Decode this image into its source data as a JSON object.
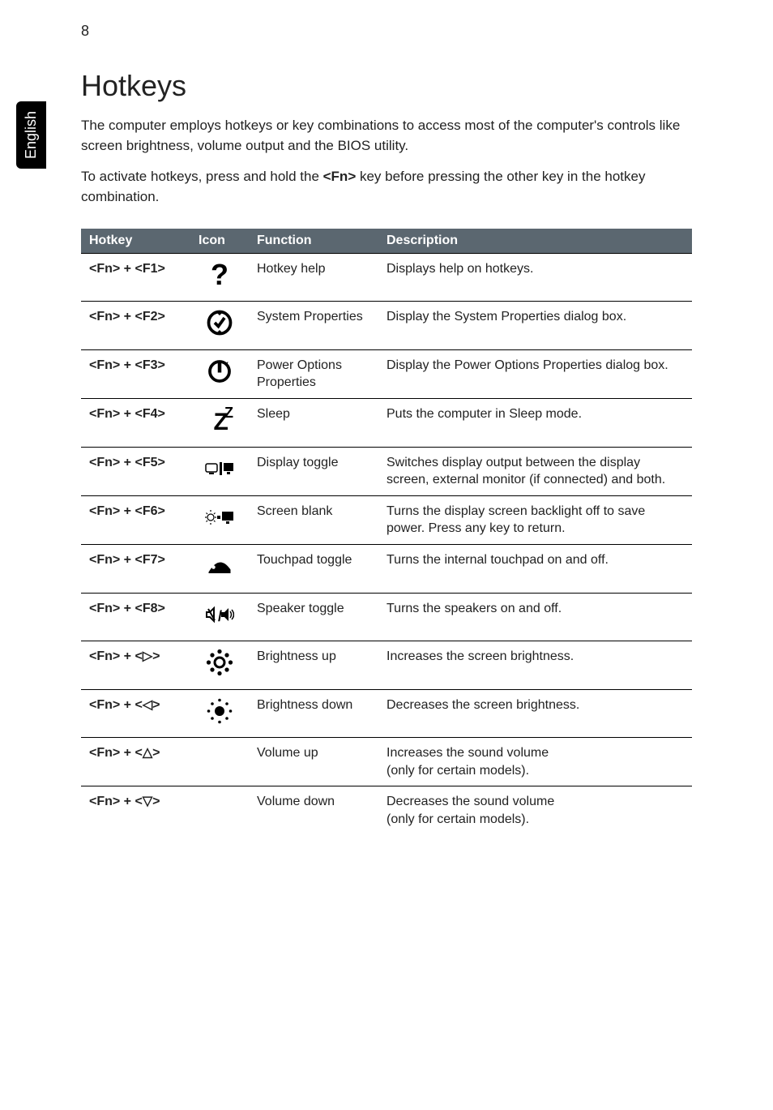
{
  "page_number": "8",
  "side_tab_label": "English",
  "heading": "Hotkeys",
  "intro_para_1": "The computer employs hotkeys or key combinations to access most of the computer's controls like screen brightness, volume output and the BIOS utility.",
  "intro_para_2_pre": "To activate hotkeys, press and hold the ",
  "intro_para_2_key": "<Fn>",
  "intro_para_2_post": " key before pressing the other key in the hotkey combination.",
  "table": {
    "header_bg": "#5b6770",
    "header_fg": "#ffffff",
    "columns": [
      "Hotkey",
      "Icon",
      "Function",
      "Description"
    ],
    "rows": [
      {
        "hotkey": "<Fn> + <F1>",
        "icon": "question-icon",
        "function": "Hotkey help",
        "description": "Displays help on hotkeys."
      },
      {
        "hotkey": "<Fn> + <F2>",
        "icon": "system-properties-icon",
        "function": "System Properties",
        "description": "Display the System Properties dialog box."
      },
      {
        "hotkey": "<Fn> + <F3>",
        "icon": "power-options-icon",
        "function": "Power Options Properties",
        "description": "Display the Power Options Properties dialog box."
      },
      {
        "hotkey": "<Fn> + <F4>",
        "icon": "sleep-icon",
        "function": "Sleep",
        "description": "Puts the computer in Sleep mode."
      },
      {
        "hotkey": "<Fn> + <F5>",
        "icon": "display-toggle-icon",
        "function": "Display toggle",
        "description": "Switches display output between the display screen, external monitor (if connected) and both."
      },
      {
        "hotkey": "<Fn> + <F6>",
        "icon": "screen-blank-icon",
        "function": "Screen blank",
        "description": "Turns the display screen backlight off to save power. Press any key to return."
      },
      {
        "hotkey": "<Fn> + <F7>",
        "icon": "touchpad-toggle-icon",
        "function": "Touchpad toggle",
        "description": "Turns the internal touchpad on and off."
      },
      {
        "hotkey": "<Fn> + <F8>",
        "icon": "speaker-toggle-icon",
        "function": "Speaker toggle",
        "description": "Turns the speakers on and off."
      },
      {
        "hotkey": "<Fn> + <▷>",
        "icon": "brightness-up-icon",
        "function": "Brightness up",
        "description": "Increases the screen brightness."
      },
      {
        "hotkey": "<Fn> + <◁>",
        "icon": "brightness-down-icon",
        "function": "Brightness down",
        "description": "Decreases the screen brightness."
      },
      {
        "hotkey": "<Fn> + <△>",
        "icon": "",
        "function": "Volume up",
        "description": "Increases the sound volume\n(only for certain models)."
      },
      {
        "hotkey": "<Fn> + <▽>",
        "icon": "",
        "function": "Volume down",
        "description": "Decreases the sound volume\n(only for certain models)."
      }
    ]
  }
}
